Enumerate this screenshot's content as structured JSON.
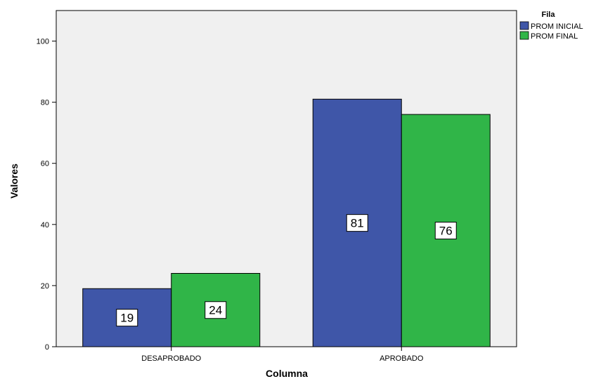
{
  "chart_data": {
    "type": "bar",
    "title": "",
    "xlabel": "Columna",
    "ylabel": "Valores",
    "categories": [
      "DESAPROBADO",
      "APROBADO"
    ],
    "series": [
      {
        "name": "PROM INICIAL",
        "values": [
          19,
          81
        ],
        "color": "#3f56a8"
      },
      {
        "name": "PROM FINAL",
        "values": [
          24,
          76
        ],
        "color": "#30b548"
      }
    ],
    "ylim": [
      0,
      110
    ],
    "yticks": [
      0,
      20,
      40,
      60,
      80,
      100
    ],
    "legend": {
      "title": "Fila",
      "position": "top-right"
    },
    "grid": false,
    "plot_background": "#f0f0f0"
  }
}
